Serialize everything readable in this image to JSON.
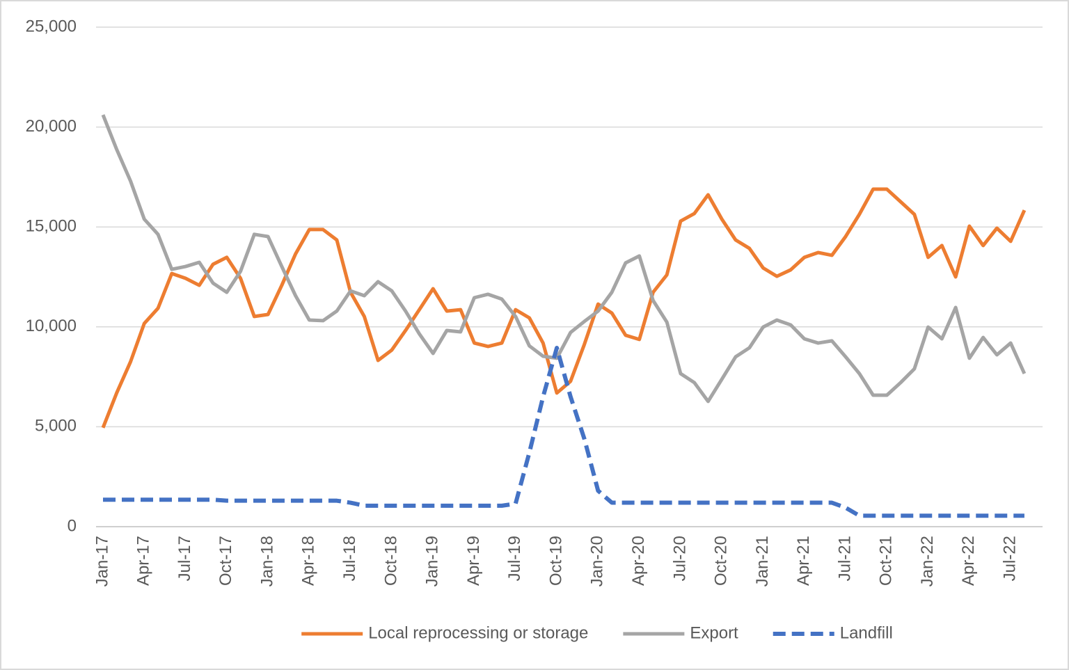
{
  "chart_data": {
    "type": "line",
    "categories": [
      "Jan-17",
      null,
      null,
      "Apr-17",
      null,
      null,
      "Jul-17",
      null,
      null,
      "Oct-17",
      null,
      null,
      "Jan-18",
      null,
      null,
      "Apr-18",
      null,
      null,
      "Jul-18",
      null,
      null,
      "Oct-18",
      null,
      null,
      "Jan-19",
      null,
      null,
      "Apr-19",
      null,
      null,
      "Jul-19",
      null,
      null,
      "Oct-19",
      null,
      null,
      "Jan-20",
      null,
      null,
      "Apr-20",
      null,
      null,
      "Jul-20",
      null,
      null,
      "Oct-20",
      null,
      null,
      "Jan-21",
      null,
      null,
      "Apr-21",
      null,
      null,
      "Jul-21",
      null,
      null,
      "Oct-21",
      null,
      null,
      "Jan-22",
      null,
      null,
      "Apr-22",
      null,
      null,
      "Jul-22",
      null
    ],
    "series": [
      {
        "name": "Local reprocessing or storage",
        "color": "#ed7d31",
        "dashed": false,
        "values": [
          4950,
          6700,
          8250,
          10170,
          10930,
          12670,
          12430,
          12080,
          13130,
          13480,
          12430,
          10520,
          10620,
          12080,
          13650,
          14870,
          14870,
          14350,
          11730,
          10520,
          8320,
          8840,
          9820,
          10860,
          11910,
          10790,
          10860,
          9190,
          9020,
          9190,
          10860,
          10450,
          9190,
          6690,
          7280,
          9120,
          11140,
          10690,
          9580,
          9370,
          11730,
          12600,
          15290,
          15670,
          16610,
          15390,
          14350,
          13930,
          12950,
          12530,
          12850,
          13480,
          13720,
          13580,
          14520,
          15630,
          16890,
          16890,
          16260,
          15630,
          13480,
          14070,
          12500,
          15040,
          14070,
          14940,
          14280,
          15840
        ]
      },
      {
        "name": "Export",
        "color": "#a5a5a5",
        "dashed": false,
        "values": [
          20610,
          18870,
          17300,
          15390,
          14630,
          12880,
          13020,
          13230,
          12190,
          11730,
          12780,
          14630,
          14520,
          13020,
          11560,
          10340,
          10310,
          10790,
          11800,
          11560,
          12260,
          11800,
          10790,
          9650,
          8670,
          9820,
          9750,
          11460,
          11630,
          11390,
          10520,
          9050,
          8530,
          8430,
          9720,
          10270,
          10790,
          11730,
          13200,
          13550,
          11320,
          10240,
          7660,
          7210,
          6270,
          7380,
          8500,
          8950,
          9990,
          10340,
          10100,
          9400,
          9190,
          9300,
          8500,
          7660,
          6580,
          6580,
          7210,
          7900,
          9990,
          9400,
          10970,
          8430,
          9470,
          8600,
          9190,
          7660
        ]
      },
      {
        "name": "Landfill",
        "color": "#4472c4",
        "dashed": true,
        "values": [
          1350,
          1350,
          1350,
          1350,
          1350,
          1350,
          1350,
          1350,
          1350,
          1300,
          1300,
          1300,
          1300,
          1300,
          1300,
          1300,
          1300,
          1300,
          1200,
          1050,
          1050,
          1050,
          1050,
          1050,
          1050,
          1050,
          1050,
          1050,
          1050,
          1050,
          1150,
          3700,
          6500,
          8950,
          6500,
          4400,
          1800,
          1200,
          1200,
          1200,
          1200,
          1200,
          1200,
          1200,
          1200,
          1200,
          1200,
          1200,
          1200,
          1200,
          1200,
          1200,
          1200,
          1200,
          950,
          550,
          550,
          550,
          550,
          550,
          550,
          550,
          550,
          550,
          550,
          550,
          550,
          550
        ]
      }
    ],
    "ylim": [
      0,
      25000
    ],
    "yticks": [
      0,
      {
        "value": 5000,
        "label": "5,000"
      },
      {
        "value": 10000,
        "label": "10,000"
      },
      {
        "value": 15000,
        "label": "15,000"
      },
      {
        "value": 20000,
        "label": "20,000"
      },
      {
        "value": 25000,
        "label": "25,000"
      }
    ],
    "grid": true,
    "legend": "bottom"
  }
}
